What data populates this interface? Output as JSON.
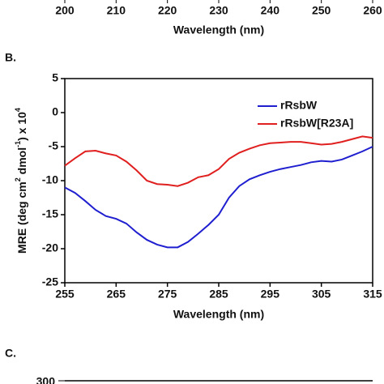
{
  "chart_data": [
    {
      "type": "axis",
      "xlim": [
        200,
        260
      ],
      "xticks": [
        200,
        210,
        220,
        230,
        240,
        250,
        260
      ],
      "xlabel": "Wavelength (nm)"
    },
    {
      "type": "line",
      "panel": "B.",
      "x": [
        255,
        257,
        259,
        261,
        263,
        265,
        267,
        269,
        271,
        273,
        275,
        277,
        279,
        281,
        283,
        285,
        287,
        289,
        291,
        293,
        295,
        297,
        299,
        301,
        303,
        305,
        307,
        309,
        311,
        313,
        315
      ],
      "series": [
        {
          "name": "rRsbW",
          "color": "#1f1fd0",
          "values": [
            -11,
            -11.8,
            -13,
            -14.3,
            -15.2,
            -15.6,
            -16.3,
            -17.6,
            -18.7,
            -19.4,
            -19.8,
            -19.8,
            -19,
            -17.8,
            -16.5,
            -15,
            -12.5,
            -10.8,
            -9.8,
            -9.2,
            -8.7,
            -8.3,
            -8,
            -7.7,
            -7.3,
            -7.1,
            -7.2,
            -6.9,
            -6.3,
            -5.7,
            -5
          ]
        },
        {
          "name": "rRsbW[R23A]",
          "color": "#e01f1f",
          "values": [
            -7.8,
            -6.7,
            -5.7,
            -5.6,
            -6,
            -6.3,
            -7.2,
            -8.5,
            -10,
            -10.5,
            -10.6,
            -10.8,
            -10.3,
            -9.5,
            -9.2,
            -8.3,
            -6.8,
            -5.9,
            -5.3,
            -4.8,
            -4.5,
            -4.4,
            -4.3,
            -4.3,
            -4.5,
            -4.7,
            -4.6,
            -4.3,
            -3.9,
            -3.5,
            -3.7
          ]
        }
      ],
      "xlim": [
        255,
        315
      ],
      "xticks": [
        255,
        265,
        275,
        285,
        295,
        305,
        315
      ],
      "ylim": [
        -25,
        5
      ],
      "yticks": [
        -25,
        -20,
        -15,
        -10,
        -5,
        0,
        5
      ],
      "xlabel": "Wavelength (nm)",
      "ylabel": [
        "MRE (deg cm",
        "2",
        " dmol",
        "-1",
        ") x 10",
        "4"
      ],
      "legend": "upper right"
    },
    {
      "type": "line",
      "panel": "C.",
      "yticks": [
        300
      ]
    }
  ]
}
